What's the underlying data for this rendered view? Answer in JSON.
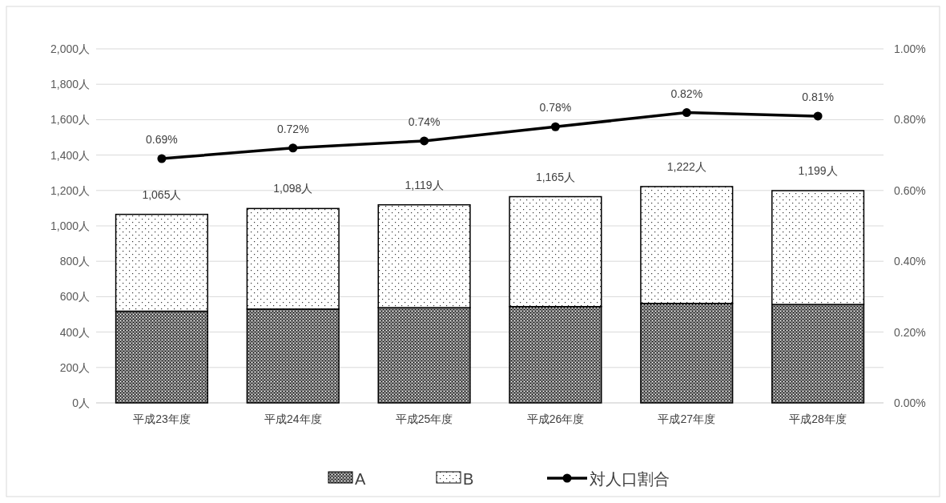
{
  "chart_data": {
    "type": "bar",
    "stacked": true,
    "categories": [
      "平成23年度",
      "平成24年度",
      "平成25年度",
      "平成26年度",
      "平成27年度",
      "平成28年度"
    ],
    "series": [
      {
        "name": "A",
        "color": "#000000",
        "values": [
          518,
          530,
          538,
          544,
          562,
          556
        ]
      },
      {
        "name": "B",
        "color": "#000000",
        "values": [
          547,
          568,
          581,
          621,
          660,
          643
        ]
      },
      {
        "name": "対人口割合",
        "type": "line",
        "axis": "y2",
        "color": "#000000",
        "marker": "circle",
        "values": [
          0.69,
          0.72,
          0.74,
          0.78,
          0.82,
          0.81
        ],
        "value_labels": [
          "0.69%",
          "0.72%",
          "0.74%",
          "0.78%",
          "0.82%",
          "0.81%"
        ]
      }
    ],
    "totals": [
      "1,065人",
      "1,098人",
      "1,119人",
      "1,165人",
      "1,222人",
      "1,199人"
    ],
    "ylim": [
      0,
      2000
    ],
    "yticks": [
      {
        "value": 0,
        "label": "0人"
      },
      {
        "value": 200,
        "label": "200人"
      },
      {
        "value": 400,
        "label": "400人"
      },
      {
        "value": 600,
        "label": "600人"
      },
      {
        "value": 800,
        "label": "800人"
      },
      {
        "value": 1000,
        "label": "1,000人"
      },
      {
        "value": 1200,
        "label": "1,200人"
      },
      {
        "value": 1400,
        "label": "1,400人"
      },
      {
        "value": 1600,
        "label": "1,600人"
      },
      {
        "value": 1800,
        "label": "1,800人"
      },
      {
        "value": 2000,
        "label": "2,000人"
      }
    ],
    "y2lim": [
      0,
      1
    ],
    "y2ticks": [
      {
        "value": 0,
        "label": "0.00%"
      },
      {
        "value": 0.2,
        "label": "0.20%"
      },
      {
        "value": 0.4,
        "label": "0.40%"
      },
      {
        "value": 0.6,
        "label": "0.60%"
      },
      {
        "value": 0.8,
        "label": "0.80%"
      },
      {
        "value": 1,
        "label": "1.00%"
      }
    ],
    "grid": "y",
    "legend": "bottom"
  }
}
